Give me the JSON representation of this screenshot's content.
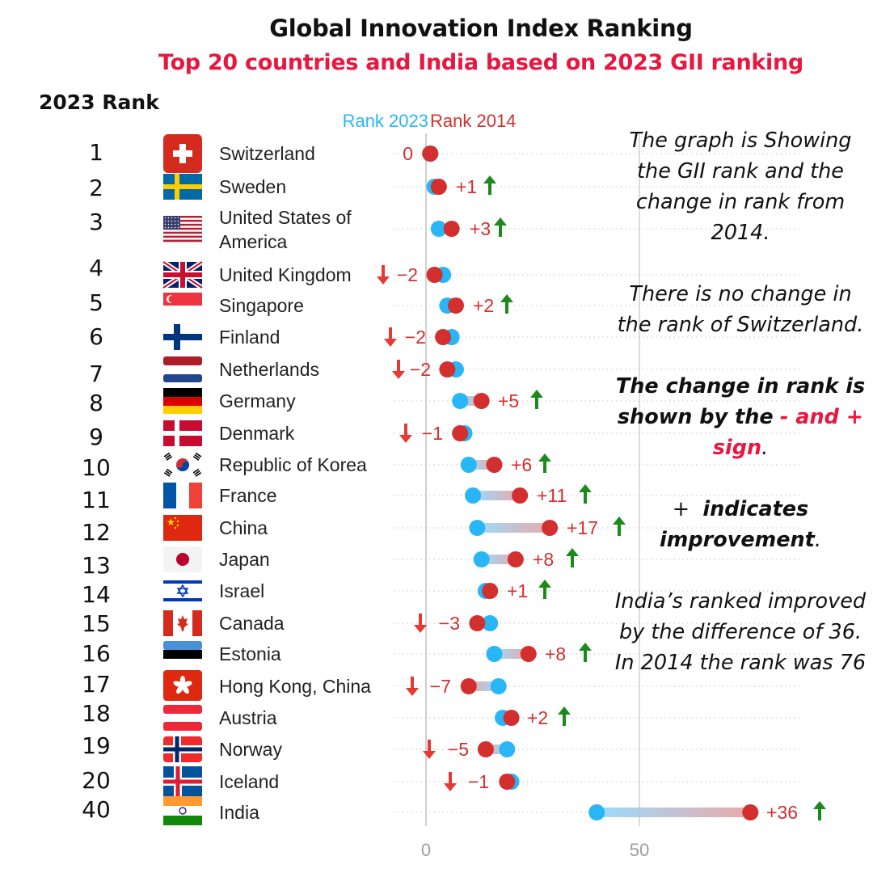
{
  "title": "Global Innovation Index Ranking",
  "subtitle": "Top 20 countries and India based on 2023 GII ranking",
  "rank_header": "2023 Rank",
  "colors": {
    "rank_2023": "#29b6f6",
    "rank_2014": "#d32f2f",
    "up_arrow": "#1b8a1b",
    "down_arrow": "#e53935",
    "subtitle": "#e8173f"
  },
  "notes": {
    "p1": "The graph is Showing the GII rank and the change in rank from 2014.",
    "p2": "There is no change in the rank of Switzerland.",
    "p3_bold": "The change in rank is shown by the",
    "p3_red": "- and + sign",
    "p3_end": ".",
    "p4_sign": "+",
    "p4_bold": "indicates improvement",
    "p4_end": ".",
    "p5": "India’s ranked improved by the difference of 36. In 2014 the rank was 76"
  },
  "chart_data": {
    "type": "dumbbell",
    "legend": [
      "Rank 2023",
      "Rank 2014"
    ],
    "x_ticks": [
      0,
      50
    ],
    "xlim": [
      0,
      90
    ],
    "rows": [
      {
        "rank": "1",
        "country": "Switzerland",
        "flag": "switzerland-flag",
        "rank_2023": 1,
        "rank_2014": 1,
        "change": "0"
      },
      {
        "rank": "2",
        "country": "Sweden",
        "flag": "sweden-flag",
        "rank_2023": 2,
        "rank_2014": 3,
        "change": "+1"
      },
      {
        "rank": "3",
        "country": "United States of America",
        "flag": "usa-flag",
        "rank_2023": 3,
        "rank_2014": 6,
        "change": "+3"
      },
      {
        "rank": "4",
        "country": "United Kingdom",
        "flag": "uk-flag",
        "rank_2023": 4,
        "rank_2014": 2,
        "change": "−2"
      },
      {
        "rank": "5",
        "country": "Singapore",
        "flag": "singapore-flag",
        "rank_2023": 5,
        "rank_2014": 7,
        "change": "+2"
      },
      {
        "rank": "6",
        "country": "Finland",
        "flag": "finland-flag",
        "rank_2023": 6,
        "rank_2014": 4,
        "change": "−2"
      },
      {
        "rank": "7",
        "country": "Netherlands",
        "flag": "netherlands-flag",
        "rank_2023": 7,
        "rank_2014": 5,
        "change": "−2"
      },
      {
        "rank": "8",
        "country": "Germany",
        "flag": "germany-flag",
        "rank_2023": 8,
        "rank_2014": 13,
        "change": "+5"
      },
      {
        "rank": "9",
        "country": "Denmark",
        "flag": "denmark-flag",
        "rank_2023": 9,
        "rank_2014": 8,
        "change": "−1"
      },
      {
        "rank": "10",
        "country": "Republic of Korea",
        "flag": "korea-flag",
        "rank_2023": 10,
        "rank_2014": 16,
        "change": "+6"
      },
      {
        "rank": "11",
        "country": "France",
        "flag": "france-flag",
        "rank_2023": 11,
        "rank_2014": 22,
        "change": "+11"
      },
      {
        "rank": "12",
        "country": "China",
        "flag": "china-flag",
        "rank_2023": 12,
        "rank_2014": 29,
        "change": "+17"
      },
      {
        "rank": "13",
        "country": "Japan",
        "flag": "japan-flag",
        "rank_2023": 13,
        "rank_2014": 21,
        "change": "+8"
      },
      {
        "rank": "14",
        "country": "Israel",
        "flag": "israel-flag",
        "rank_2023": 14,
        "rank_2014": 15,
        "change": "+1"
      },
      {
        "rank": "15",
        "country": "Canada",
        "flag": "canada-flag",
        "rank_2023": 15,
        "rank_2014": 12,
        "change": "−3"
      },
      {
        "rank": "16",
        "country": "Estonia",
        "flag": "estonia-flag",
        "rank_2023": 16,
        "rank_2014": 24,
        "change": "+8"
      },
      {
        "rank": "17",
        "country": "Hong Kong, China",
        "flag": "hongkong-flag",
        "rank_2023": 17,
        "rank_2014": 10,
        "change": "−7"
      },
      {
        "rank": "18",
        "country": "Austria",
        "flag": "austria-flag",
        "rank_2023": 18,
        "rank_2014": 20,
        "change": "+2"
      },
      {
        "rank": "19",
        "country": "Norway",
        "flag": "norway-flag",
        "rank_2023": 19,
        "rank_2014": 14,
        "change": "−5"
      },
      {
        "rank": "20",
        "country": "Iceland",
        "flag": "iceland-flag",
        "rank_2023": 20,
        "rank_2014": 19,
        "change": "−1"
      },
      {
        "rank": "40",
        "country": "India",
        "flag": "india-flag",
        "rank_2023": 40,
        "rank_2014": 76,
        "change": "+36"
      }
    ]
  }
}
